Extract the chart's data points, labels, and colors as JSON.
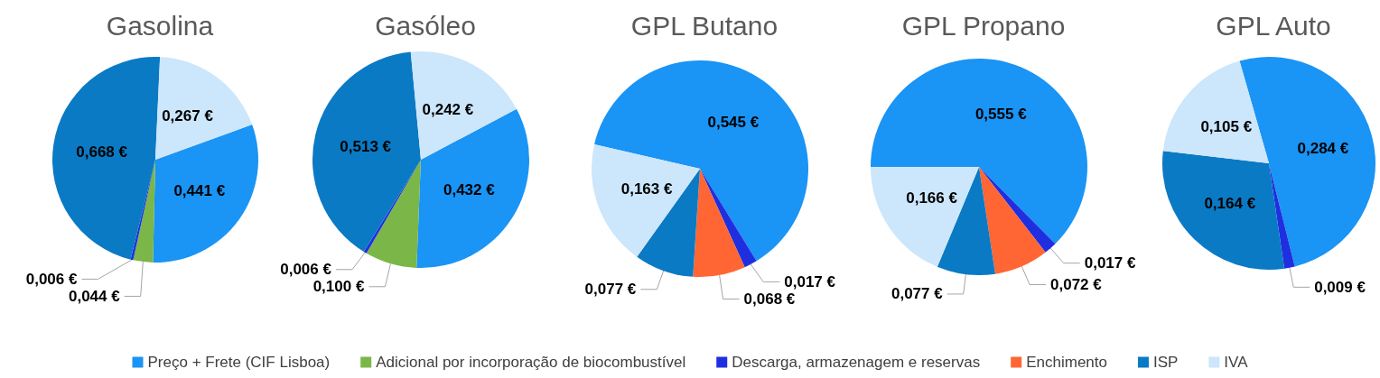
{
  "chart_data": {
    "type": "pie",
    "categories": [
      "Preço + Frete (CIF Lisboa)",
      "Adicional por incorporação de biocombustível",
      "Descarga, armazenagem e reservas",
      "Enchimento",
      "ISP",
      "IVA"
    ],
    "colors": [
      "#1a94f5",
      "#7ab648",
      "#1f2fe0",
      "#ff6633",
      "#0a7ac4",
      "#cce6fb"
    ],
    "series": [
      {
        "name": "Gasolina",
        "values": [
          0.441,
          0.044,
          0.006,
          null,
          0.668,
          0.267
        ],
        "value_labels": [
          "0,441 €",
          "0,044 €",
          "0,006 €",
          null,
          "0,668 €",
          "0,267 €"
        ]
      },
      {
        "name": "Gasóleo",
        "values": [
          0.432,
          0.1,
          0.006,
          null,
          0.513,
          0.242
        ],
        "value_labels": [
          "0,432 €",
          "0,100 €",
          "0,006 €",
          null,
          "0,513 €",
          "0,242 €"
        ]
      },
      {
        "name": "GPL Butano",
        "values": [
          0.545,
          null,
          0.017,
          0.068,
          0.077,
          0.163
        ],
        "value_labels": [
          "0,545 €",
          null,
          "0,017 €",
          "0,068 €",
          "0,077 €",
          "0,163 €"
        ]
      },
      {
        "name": "GPL Propano",
        "values": [
          0.555,
          null,
          0.017,
          0.072,
          0.077,
          0.166
        ],
        "value_labels": [
          "0,555 €",
          null,
          "0,017 €",
          "0,072 €",
          "0,077 €",
          "0,166 €"
        ]
      },
      {
        "name": "GPL Auto",
        "values": [
          0.284,
          null,
          0.009,
          null,
          0.164,
          0.105
        ],
        "value_labels": [
          "0,284 €",
          null,
          "0,009 €",
          null,
          "0,164 €",
          "0,105 €"
        ]
      }
    ],
    "legend": "bottom"
  }
}
